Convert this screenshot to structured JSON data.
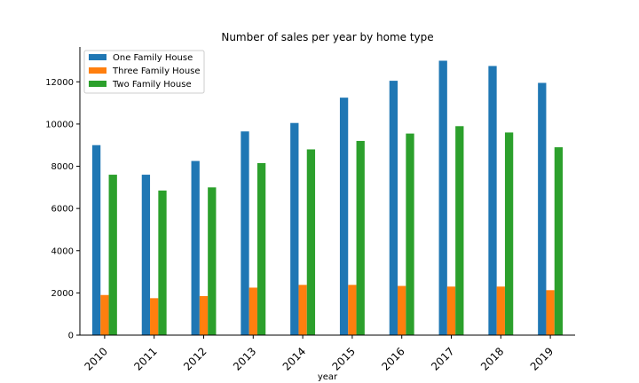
{
  "chart_data": {
    "type": "bar",
    "title": "Number of sales per year by home type",
    "xlabel": "year",
    "ylabel": "",
    "categories": [
      "2010",
      "2011",
      "2012",
      "2013",
      "2014",
      "2015",
      "2016",
      "2017",
      "2018",
      "2019"
    ],
    "series": [
      {
        "name": "One Family House",
        "color": "#1f77b4",
        "values": [
          9000,
          7600,
          8250,
          9650,
          10050,
          11250,
          12050,
          13000,
          12750,
          11950
        ]
      },
      {
        "name": "Three Family House",
        "color": "#ff7f0e",
        "values": [
          1900,
          1750,
          1850,
          2250,
          2380,
          2380,
          2330,
          2300,
          2300,
          2130
        ]
      },
      {
        "name": "Two Family House",
        "color": "#2ca02c",
        "values": [
          7600,
          6850,
          7000,
          8150,
          8800,
          9200,
          9550,
          9900,
          9600,
          8900
        ]
      }
    ],
    "ylim": [
      0,
      13650
    ],
    "yticks": [
      0,
      2000,
      4000,
      6000,
      8000,
      10000,
      12000
    ],
    "grid": false,
    "legend_position": "top-left"
  }
}
